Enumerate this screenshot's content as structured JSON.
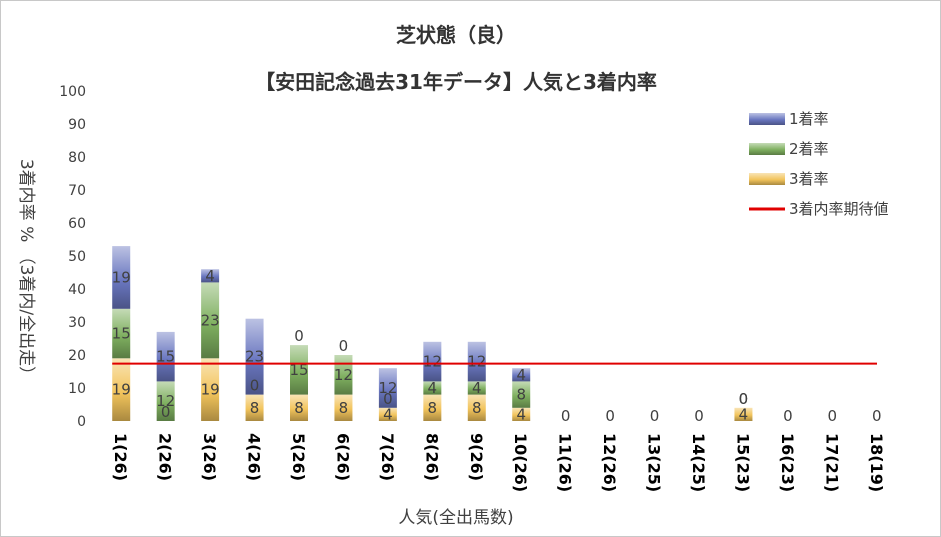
{
  "chart_data": {
    "type": "bar",
    "stacked": true,
    "title": "芝状態（良）",
    "subtitle": "【安田記念過去31年データ】人気と3着内率",
    "xlabel": "人気(全出馬数)",
    "ylabel": "3着内率 %  （3着内/全出走）",
    "ylim": [
      0,
      100
    ],
    "yticks": [
      "0",
      "10",
      "20",
      "30",
      "40",
      "50",
      "60",
      "70",
      "80",
      "90",
      "100"
    ],
    "categories": [
      "1(26)",
      "2(26)",
      "3(26)",
      "4(26)",
      "5(26)",
      "6(26)",
      "7(26)",
      "8(26)",
      "9(26)",
      "10(26)",
      "11(26)",
      "12(26)",
      "13(25)",
      "14(25)",
      "15(23)",
      "16(23)",
      "17(21)",
      "18(19)"
    ],
    "series": [
      {
        "name": "3着率",
        "color": "#f2c45c",
        "values": [
          19,
          0,
          19,
          8,
          8,
          8,
          4,
          8,
          8,
          4,
          0,
          0,
          0,
          0,
          4,
          0,
          0,
          0
        ]
      },
      {
        "name": "2着率",
        "color": "#7fb060",
        "values": [
          15,
          12,
          23,
          0,
          15,
          12,
          0,
          4,
          4,
          8,
          0,
          0,
          0,
          0,
          0,
          0,
          0,
          0
        ]
      },
      {
        "name": "1着率",
        "color": "#6a77c0",
        "values": [
          19,
          15,
          4,
          23,
          0,
          0,
          12,
          12,
          12,
          4,
          0,
          0,
          0,
          0,
          0,
          0,
          0,
          0
        ]
      }
    ],
    "expected_line": {
      "name": "3着内率期待値",
      "color": "#e00000",
      "value": 17.4
    },
    "legend_position": "right",
    "grid": false
  }
}
